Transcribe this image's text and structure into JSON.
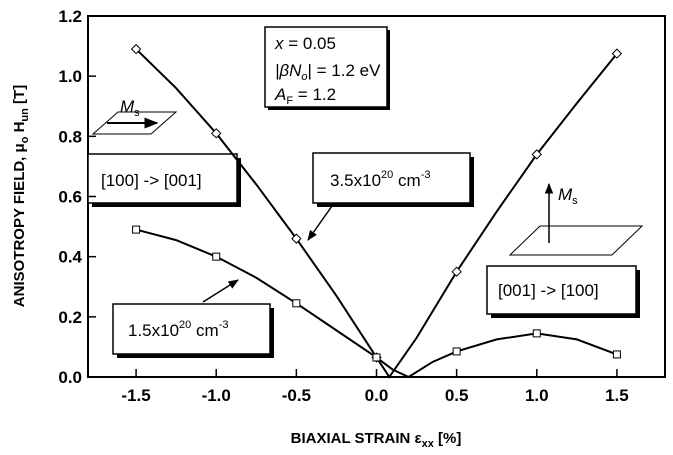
{
  "chart_data": {
    "type": "line",
    "xlabel": [
      "BIAXIAL STRAIN ε",
      "xx",
      " [%]"
    ],
    "ylabel": [
      "ANISOTROPY FIELD, μ",
      "o",
      " H",
      "un",
      "  [T]"
    ],
    "xlim": [
      -1.8,
      1.8
    ],
    "ylim": [
      0,
      1.2
    ],
    "xticks": [
      -1.5,
      {
        "value": -1.0,
        "label": "-1.0"
      },
      -0.5,
      {
        "value": 0.0,
        "label": "0.0"
      },
      0.5,
      {
        "value": 1.0,
        "label": "1.0"
      },
      1.5
    ],
    "yticks": [
      {
        "value": 0.0,
        "label": "0.0"
      },
      0.2,
      0.4,
      0.6,
      0.8,
      {
        "value": 1.0,
        "label": "1.0"
      },
      1.2
    ],
    "series": [
      {
        "color": "#000000",
        "marker": "diamond",
        "x": [
          -1.5,
          -1.0,
          -0.5,
          0.0,
          0.5,
          1.0,
          1.5
        ],
        "values": [
          1.09,
          0.81,
          0.46,
          0.065,
          0.35,
          0.74,
          1.075
        ],
        "curve": {
          "x": [
            -1.5,
            -1.25,
            -1.0,
            -0.75,
            -0.5,
            -0.25,
            0.0,
            0.08,
            0.25,
            0.5,
            0.75,
            1.0,
            1.25,
            1.5
          ],
          "values": [
            1.09,
            0.96,
            0.81,
            0.64,
            0.46,
            0.27,
            0.065,
            0.0,
            0.13,
            0.35,
            0.55,
            0.74,
            0.91,
            1.075
          ]
        }
      },
      {
        "color": "#000000",
        "marker": "square",
        "x": [
          -1.5,
          -1.0,
          -0.5,
          0.0,
          0.5,
          1.0,
          1.5
        ],
        "values": [
          0.49,
          0.4,
          0.245,
          0.065,
          0.085,
          0.145,
          0.075
        ],
        "curve": {
          "x": [
            -1.5,
            -1.25,
            -1.0,
            -0.75,
            -0.5,
            -0.25,
            0.0,
            0.1,
            0.2,
            0.35,
            0.5,
            0.75,
            1.0,
            1.25,
            1.5
          ],
          "values": [
            0.49,
            0.455,
            0.4,
            0.33,
            0.245,
            0.155,
            0.065,
            0.025,
            0.0,
            0.05,
            0.085,
            0.125,
            0.145,
            0.125,
            0.075
          ]
        }
      }
    ],
    "annotations": {
      "params": [
        [
          "x",
          " = 0.05"
        ],
        [
          "|βN",
          "o",
          "| = 1.2 eV"
        ],
        [
          "A",
          "F",
          " = 1.2"
        ]
      ],
      "label_high": [
        "3.5x10",
        "20",
        " cm",
        "-3"
      ],
      "label_low": [
        "1.5x10",
        "20",
        " cm",
        "-3"
      ],
      "in_plane": "[100] -> [001]",
      "out_of_plane": "[001] -> [100]",
      "ms_left": [
        "M",
        "s"
      ],
      "ms_right": [
        "M",
        "s"
      ]
    }
  }
}
